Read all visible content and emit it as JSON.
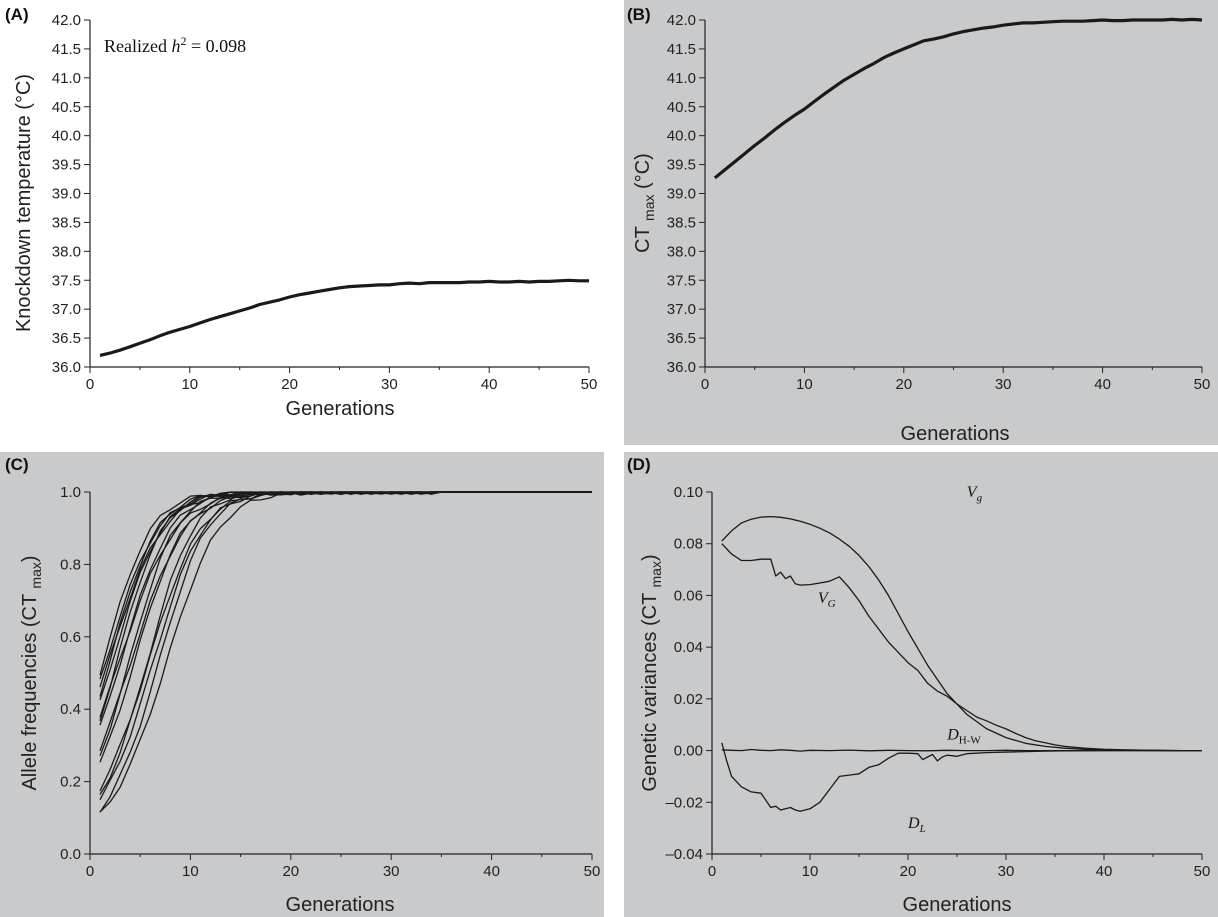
{
  "colors": {
    "panel_bg": "#c9cacc",
    "plot_bg": "#ffffff",
    "line": "#1a1a1a",
    "axis": "#222222"
  },
  "chart_data": [
    {
      "id": "A",
      "type": "line",
      "panel_label": "(A)",
      "xlabel": "Generations",
      "ylabel": "Knockdown temperature (°C)",
      "xlim": [
        0,
        50
      ],
      "ylim": [
        36.0,
        42.0
      ],
      "xticks": [
        0,
        10,
        20,
        30,
        40,
        50
      ],
      "xtick_labels": [
        "0",
        "10",
        "20",
        "30",
        "40",
        "50"
      ],
      "yticks": [
        36.0,
        36.5,
        37.0,
        37.5,
        38.0,
        38.5,
        39.0,
        39.5,
        40.0,
        40.5,
        41.0,
        41.5,
        42.0
      ],
      "ytick_labels": [
        "36.0",
        "36.5",
        "37.0",
        "37.5",
        "38.0",
        "38.5",
        "39.0",
        "39.5",
        "40.0",
        "40.5",
        "41.0",
        "41.5",
        "42.0"
      ],
      "background": "white",
      "annotation": {
        "text": "Realized h2 = 0.098",
        "prefix": "Realized ",
        "var": "h",
        "sup": "2",
        "suffix": " = 0.098"
      },
      "series": [
        {
          "x": [
            1,
            2,
            3,
            4,
            5,
            6,
            7,
            8,
            9,
            10,
            11,
            12,
            13,
            14,
            15,
            16,
            17,
            18,
            19,
            20,
            21,
            22,
            23,
            24,
            25,
            26,
            27,
            28,
            29,
            30,
            31,
            32,
            33,
            34,
            35,
            36,
            37,
            38,
            39,
            40,
            41,
            42,
            43,
            44,
            45,
            46,
            47,
            48,
            49,
            50
          ],
          "y": [
            36.2,
            36.24,
            36.29,
            36.35,
            36.41,
            36.47,
            36.54,
            36.6,
            36.65,
            36.7,
            36.76,
            36.82,
            36.87,
            36.92,
            36.97,
            37.02,
            37.08,
            37.12,
            37.16,
            37.21,
            37.25,
            37.28,
            37.31,
            37.34,
            37.37,
            37.39,
            37.4,
            37.41,
            37.42,
            37.42,
            37.44,
            37.45,
            37.44,
            37.46,
            37.46,
            37.46,
            37.46,
            37.47,
            37.47,
            37.48,
            37.47,
            37.47,
            37.48,
            37.47,
            37.48,
            37.48,
            37.49,
            37.5,
            37.49,
            37.49
          ]
        }
      ]
    },
    {
      "id": "B",
      "type": "line",
      "panel_label": "(B)",
      "xlabel": "Generations",
      "ylabel": "CT max (°C)",
      "xlim": [
        0,
        50
      ],
      "ylim": [
        36.0,
        42.0
      ],
      "xticks": [
        0,
        10,
        20,
        30,
        40,
        50
      ],
      "xtick_labels": [
        "0",
        "10",
        "20",
        "30",
        "40",
        "50"
      ],
      "yticks": [
        36.0,
        36.5,
        37.0,
        37.5,
        38.0,
        38.5,
        39.0,
        39.5,
        40.0,
        40.5,
        41.0,
        41.5,
        42.0
      ],
      "ytick_labels": [
        "36.0",
        "36.5",
        "37.0",
        "37.5",
        "38.0",
        "38.5",
        "39.0",
        "39.5",
        "40.0",
        "40.5",
        "41.0",
        "41.5",
        "42.0"
      ],
      "background": "gray",
      "series": [
        {
          "x": [
            1,
            2,
            3,
            4,
            5,
            6,
            7,
            8,
            9,
            10,
            11,
            12,
            13,
            14,
            15,
            16,
            17,
            18,
            19,
            20,
            21,
            22,
            23,
            24,
            25,
            26,
            27,
            28,
            29,
            30,
            31,
            32,
            33,
            34,
            35,
            36,
            37,
            38,
            39,
            40,
            41,
            42,
            43,
            44,
            45,
            46,
            47,
            48,
            49,
            50
          ],
          "y": [
            39.27,
            39.41,
            39.55,
            39.69,
            39.83,
            39.96,
            40.1,
            40.23,
            40.35,
            40.46,
            40.59,
            40.72,
            40.84,
            40.96,
            41.06,
            41.16,
            41.25,
            41.35,
            41.43,
            41.5,
            41.57,
            41.64,
            41.67,
            41.71,
            41.76,
            41.8,
            41.83,
            41.86,
            41.88,
            41.91,
            41.93,
            41.95,
            41.95,
            41.96,
            41.97,
            41.98,
            41.98,
            41.98,
            41.99,
            42.0,
            41.99,
            41.99,
            42.0,
            42.0,
            42.0,
            42.0,
            42.01,
            42.0,
            42.01,
            42.0
          ]
        }
      ]
    },
    {
      "id": "C",
      "type": "line",
      "panel_label": "(C)",
      "xlabel": "Generations",
      "ylabel": "Allele frequencies (CT max)",
      "xlim": [
        0,
        50
      ],
      "ylim": [
        0.0,
        1.0
      ],
      "xticks": [
        0,
        10,
        20,
        30,
        40,
        50
      ],
      "xtick_labels": [
        "0",
        "10",
        "20",
        "30",
        "40",
        "50"
      ],
      "yticks": [
        0.0,
        0.2,
        0.4,
        0.6,
        0.8,
        1.0
      ],
      "ytick_labels": [
        "0.0",
        "0.2",
        "0.4",
        "0.6",
        "0.8",
        "1.0"
      ],
      "background": "gray",
      "series_model": "logistic",
      "series": [
        {
          "p0": 0.11,
          "r": 0.24
        },
        {
          "p0": 0.12,
          "r": 0.26
        },
        {
          "p0": 0.15,
          "r": 0.25
        },
        {
          "p0": 0.16,
          "r": 0.27
        },
        {
          "p0": 0.18,
          "r": 0.24
        },
        {
          "p0": 0.25,
          "r": 0.25
        },
        {
          "p0": 0.27,
          "r": 0.27
        },
        {
          "p0": 0.29,
          "r": 0.23
        },
        {
          "p0": 0.35,
          "r": 0.25
        },
        {
          "p0": 0.37,
          "r": 0.27
        },
        {
          "p0": 0.38,
          "r": 0.22
        },
        {
          "p0": 0.42,
          "r": 0.25
        },
        {
          "p0": 0.44,
          "r": 0.26
        },
        {
          "p0": 0.46,
          "r": 0.23
        },
        {
          "p0": 0.48,
          "r": 0.24
        },
        {
          "p0": 0.5,
          "r": 0.26
        }
      ]
    },
    {
      "id": "D",
      "type": "line",
      "panel_label": "(D)",
      "xlabel": "Generations",
      "ylabel": "Genetic variances (CT max)",
      "xlim": [
        0,
        50
      ],
      "ylim": [
        -0.04,
        0.1
      ],
      "xticks": [
        0,
        10,
        20,
        30,
        40,
        50
      ],
      "xtick_labels": [
        "0",
        "10",
        "20",
        "30",
        "40",
        "50"
      ],
      "yticks": [
        -0.04,
        -0.02,
        0.0,
        0.02,
        0.04,
        0.06,
        0.08,
        0.1
      ],
      "ytick_labels": [
        "–0.04",
        "–0.02",
        "0.00",
        "0.02",
        "0.04",
        "0.06",
        "0.08",
        "0.10"
      ],
      "background": "gray",
      "series": [
        {
          "name": "Vg",
          "base": "V",
          "sub": "g",
          "italic_sub": true,
          "x": [
            1,
            2,
            3,
            4,
            5,
            6,
            7,
            8,
            9,
            10,
            11,
            12,
            13,
            14,
            15,
            16,
            17,
            18,
            19,
            20,
            22,
            24,
            26,
            28,
            30,
            32,
            34,
            36,
            38,
            40,
            42,
            44,
            46,
            48,
            50
          ],
          "y": [
            0.081,
            0.085,
            0.088,
            0.0895,
            0.0903,
            0.0905,
            0.0902,
            0.0896,
            0.0887,
            0.0875,
            0.086,
            0.0842,
            0.0818,
            0.079,
            0.0755,
            0.0712,
            0.066,
            0.06,
            0.053,
            0.046,
            0.033,
            0.022,
            0.014,
            0.0085,
            0.005,
            0.0028,
            0.0016,
            0.0009,
            0.0005,
            0.0003,
            0.0002,
            0.0001,
            0.0,
            0.0,
            0.0
          ]
        },
        {
          "name": "VG",
          "base": "V",
          "sub": "G",
          "italic_sub": true,
          "x": [
            1,
            2,
            3,
            4,
            5,
            6,
            6.5,
            7,
            7.5,
            8,
            8.5,
            9,
            10,
            11,
            12,
            13,
            14,
            15,
            16,
            17,
            18,
            19,
            20,
            21,
            22,
            23,
            24,
            25,
            26,
            27,
            28,
            29,
            30,
            31,
            32,
            33,
            34,
            35,
            36,
            38,
            40,
            42,
            44,
            46,
            48,
            50
          ],
          "y": [
            0.08,
            0.076,
            0.0735,
            0.0735,
            0.074,
            0.074,
            0.0675,
            0.069,
            0.0665,
            0.0675,
            0.0645,
            0.064,
            0.0642,
            0.0648,
            0.0655,
            0.0672,
            0.063,
            0.058,
            0.052,
            0.047,
            0.042,
            0.038,
            0.034,
            0.031,
            0.026,
            0.023,
            0.021,
            0.018,
            0.0155,
            0.013,
            0.0115,
            0.0098,
            0.0084,
            0.0066,
            0.005,
            0.0038,
            0.003,
            0.0022,
            0.0016,
            0.0009,
            0.0005,
            0.0003,
            0.0002,
            0.0001,
            0.0,
            0.0
          ]
        },
        {
          "name": "DH-W",
          "base": "D",
          "sub": "H-W",
          "italic_sub": false,
          "x": [
            1,
            2,
            3,
            4,
            5,
            6,
            7,
            8,
            9,
            10,
            12,
            14,
            16,
            18,
            20,
            22,
            24,
            26,
            28,
            30,
            32,
            34,
            36,
            38,
            40,
            42,
            44,
            46,
            48,
            50
          ],
          "y": [
            0.0003,
            0.0001,
            0.0,
            0.0004,
            0.0001,
            0.0,
            0.0003,
            0.0001,
            -0.0002,
            0.0001,
            0.0,
            0.0002,
            -0.0001,
            0.0001,
            0.0,
            -0.0001,
            0.0001,
            0.0,
            0.0,
            0.0001,
            0.0,
            0.0,
            0.0,
            0.0,
            0.0,
            0.0,
            0.0,
            0.0,
            0.0,
            0.0
          ]
        },
        {
          "name": "DL",
          "base": "D",
          "sub": "L",
          "italic_sub": true,
          "x": [
            1,
            1.5,
            2,
            3,
            4,
            5,
            6,
            6.5,
            7,
            8,
            8.5,
            9,
            10,
            11,
            12,
            13,
            14,
            15,
            16,
            17,
            18,
            19,
            20,
            21,
            21.5,
            22,
            22.5,
            23,
            23.5,
            24,
            25,
            26,
            28,
            30,
            32,
            34,
            36,
            40,
            45,
            50
          ],
          "y": [
            0.003,
            -0.004,
            -0.01,
            -0.014,
            -0.016,
            -0.0165,
            -0.022,
            -0.0215,
            -0.023,
            -0.022,
            -0.023,
            -0.0235,
            -0.0225,
            -0.02,
            -0.015,
            -0.01,
            -0.0095,
            -0.009,
            -0.0065,
            -0.0055,
            -0.003,
            -0.001,
            -0.001,
            -0.0012,
            -0.0035,
            -0.0025,
            -0.0015,
            -0.004,
            -0.0025,
            -0.0018,
            -0.0022,
            -0.0012,
            -0.0008,
            -0.0006,
            -0.0004,
            -0.0002,
            -0.0001,
            0.0,
            0.0,
            0.0
          ]
        }
      ],
      "labels": [
        {
          "series": "Vg",
          "at": [
            26.0,
            0.098
          ]
        },
        {
          "series": "VG",
          "at": [
            10.8,
            0.057
          ]
        },
        {
          "series": "DH-W",
          "at": [
            24.0,
            0.0042
          ]
        },
        {
          "series": "DL",
          "at": [
            20.0,
            -0.03
          ]
        }
      ]
    }
  ]
}
